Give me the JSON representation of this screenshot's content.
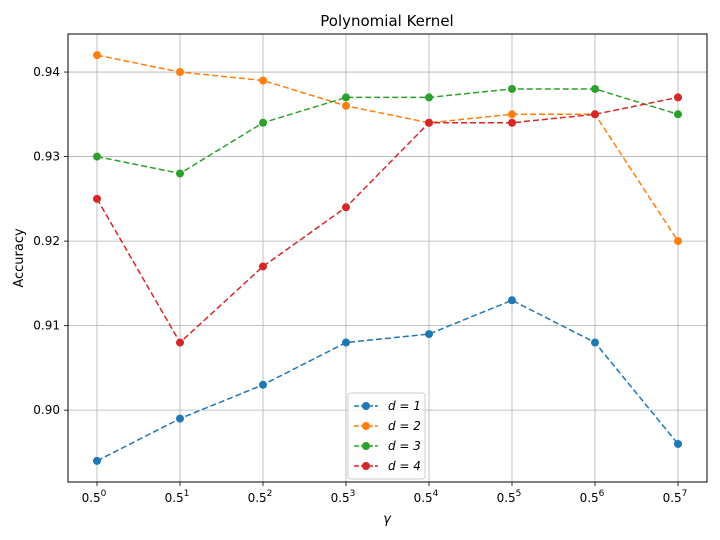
{
  "chart_data": {
    "type": "line",
    "title": "Polynomial Kernel",
    "xlabel": "γ",
    "ylabel": "Accuracy",
    "x_base": "0.5",
    "categories": [
      "0",
      "1",
      "2",
      "3",
      "4",
      "5",
      "6",
      "7"
    ],
    "ylim": [
      0.8915,
      0.9445
    ],
    "yticks": [
      "0.90",
      "0.91",
      "0.92",
      "0.93",
      "0.94"
    ],
    "ytick_values": [
      0.9,
      0.91,
      0.92,
      0.93,
      0.94
    ],
    "grid": true,
    "legend_position": "lower-center",
    "series": [
      {
        "name": "d = 1",
        "color": "#1f77b4",
        "values": [
          0.894,
          0.899,
          0.903,
          0.908,
          0.909,
          0.913,
          0.908,
          0.896
        ]
      },
      {
        "name": "d = 2",
        "color": "#ff7f0e",
        "values": [
          0.942,
          0.94,
          0.939,
          0.936,
          0.934,
          0.935,
          0.935,
          0.92
        ]
      },
      {
        "name": "d = 3",
        "color": "#2ca02c",
        "values": [
          0.93,
          0.928,
          0.934,
          0.937,
          0.937,
          0.938,
          0.938,
          0.935
        ]
      },
      {
        "name": "d = 4",
        "color": "#d62728",
        "values": [
          0.925,
          0.908,
          0.917,
          0.924,
          0.934,
          0.934,
          0.935,
          0.937
        ]
      }
    ]
  }
}
